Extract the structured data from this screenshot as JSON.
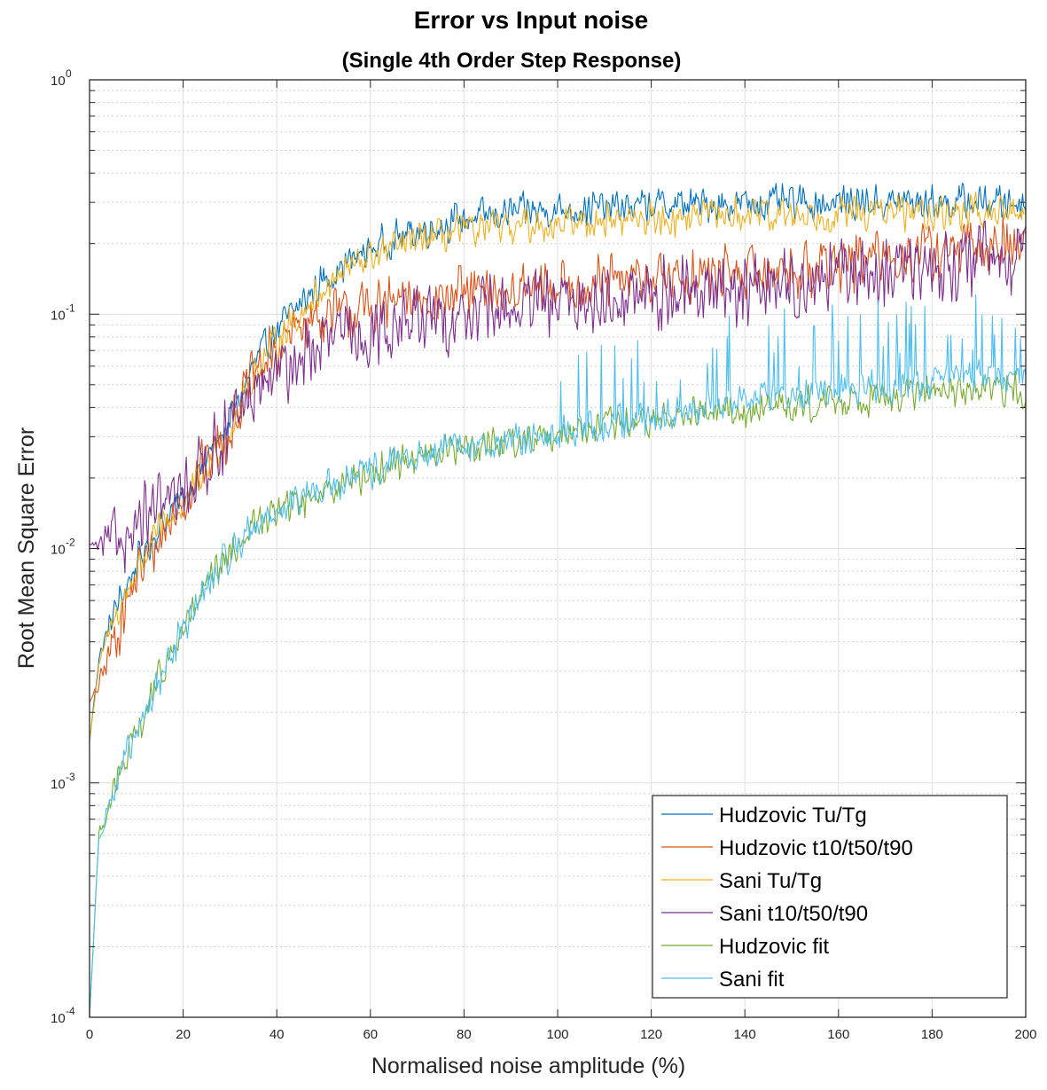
{
  "chart_data": {
    "type": "line",
    "title": "Error vs Input noise",
    "subtitle": "(Single 4th Order Step Response)",
    "xlabel": "Normalised noise amplitude (%)",
    "ylabel": "Root Mean Square Error",
    "xlim": [
      0,
      200
    ],
    "ylim": [
      0.0001,
      1
    ],
    "yscale": "log",
    "grid": true,
    "legend_position": "bottom-right",
    "x_ticks": [
      "0",
      "20",
      "40",
      "60",
      "80",
      "100",
      "120",
      "140",
      "160",
      "180",
      "200"
    ],
    "y_ticks": [
      {
        "base": "10",
        "exp": "-4"
      },
      {
        "base": "10",
        "exp": "-3"
      },
      {
        "base": "10",
        "exp": "-2"
      },
      {
        "base": "10",
        "exp": "-1"
      },
      {
        "base": "10",
        "exp": "0"
      }
    ],
    "x": [
      0,
      2,
      5,
      10,
      15,
      20,
      25,
      30,
      35,
      40,
      45,
      50,
      55,
      60,
      65,
      70,
      75,
      80,
      90,
      100,
      110,
      120,
      130,
      140,
      150,
      160,
      170,
      180,
      190,
      200
    ],
    "series": [
      {
        "name": "Hudzovic Tu/Tg",
        "color": "#0072BD",
        "noise": 0.1,
        "values": [
          0.0015,
          0.0034,
          0.0052,
          0.0085,
          0.0125,
          0.0165,
          0.024,
          0.035,
          0.06,
          0.085,
          0.11,
          0.14,
          0.165,
          0.19,
          0.21,
          0.225,
          0.24,
          0.255,
          0.27,
          0.28,
          0.285,
          0.29,
          0.295,
          0.297,
          0.298,
          0.3,
          0.3,
          0.3,
          0.3,
          0.3
        ]
      },
      {
        "name": "Hudzovic t10/t50/t90",
        "color": "#D95319",
        "noise": 0.16,
        "values": [
          0.0022,
          0.0026,
          0.004,
          0.0075,
          0.011,
          0.016,
          0.024,
          0.032,
          0.055,
          0.07,
          0.09,
          0.1,
          0.1,
          0.105,
          0.11,
          0.115,
          0.12,
          0.12,
          0.125,
          0.13,
          0.135,
          0.14,
          0.145,
          0.15,
          0.155,
          0.165,
          0.175,
          0.185,
          0.19,
          0.2
        ]
      },
      {
        "name": "Sani Tu/Tg",
        "color": "#EDB120",
        "noise": 0.1,
        "values": [
          0.0015,
          0.0032,
          0.0048,
          0.008,
          0.012,
          0.0155,
          0.022,
          0.032,
          0.055,
          0.078,
          0.1,
          0.13,
          0.155,
          0.175,
          0.19,
          0.205,
          0.215,
          0.225,
          0.235,
          0.245,
          0.25,
          0.255,
          0.26,
          0.265,
          0.265,
          0.27,
          0.27,
          0.27,
          0.27,
          0.27
        ]
      },
      {
        "name": "Sani t10/t50/t90",
        "color": "#7E2F8E",
        "noise": 0.2,
        "values": [
          0.0105,
          0.0102,
          0.0108,
          0.0125,
          0.0145,
          0.018,
          0.024,
          0.032,
          0.045,
          0.055,
          0.065,
          0.075,
          0.08,
          0.085,
          0.09,
          0.095,
          0.095,
          0.1,
          0.105,
          0.11,
          0.115,
          0.12,
          0.125,
          0.13,
          0.135,
          0.145,
          0.15,
          0.16,
          0.17,
          0.18
        ]
      },
      {
        "name": "Hudzovic fit",
        "color": "#77AC30",
        "noise": 0.1,
        "values": [
          0.0001,
          0.0006,
          0.0009,
          0.0016,
          0.0028,
          0.0045,
          0.0068,
          0.0095,
          0.0125,
          0.0145,
          0.016,
          0.018,
          0.0195,
          0.021,
          0.023,
          0.025,
          0.026,
          0.027,
          0.029,
          0.031,
          0.033,
          0.035,
          0.037,
          0.039,
          0.041,
          0.043,
          0.045,
          0.046,
          0.047,
          0.048
        ]
      },
      {
        "name": "Sani fit",
        "color": "#4DBEEE",
        "noise": 0.1,
        "values": [
          0.0001,
          0.0006,
          0.0009,
          0.0016,
          0.0028,
          0.0045,
          0.0068,
          0.0095,
          0.0125,
          0.0145,
          0.016,
          0.018,
          0.0195,
          0.021,
          0.023,
          0.025,
          0.026,
          0.027,
          0.029,
          0.031,
          0.034,
          0.037,
          0.04,
          0.043,
          0.046,
          0.048,
          0.05,
          0.052,
          0.054,
          0.056
        ]
      }
    ]
  }
}
